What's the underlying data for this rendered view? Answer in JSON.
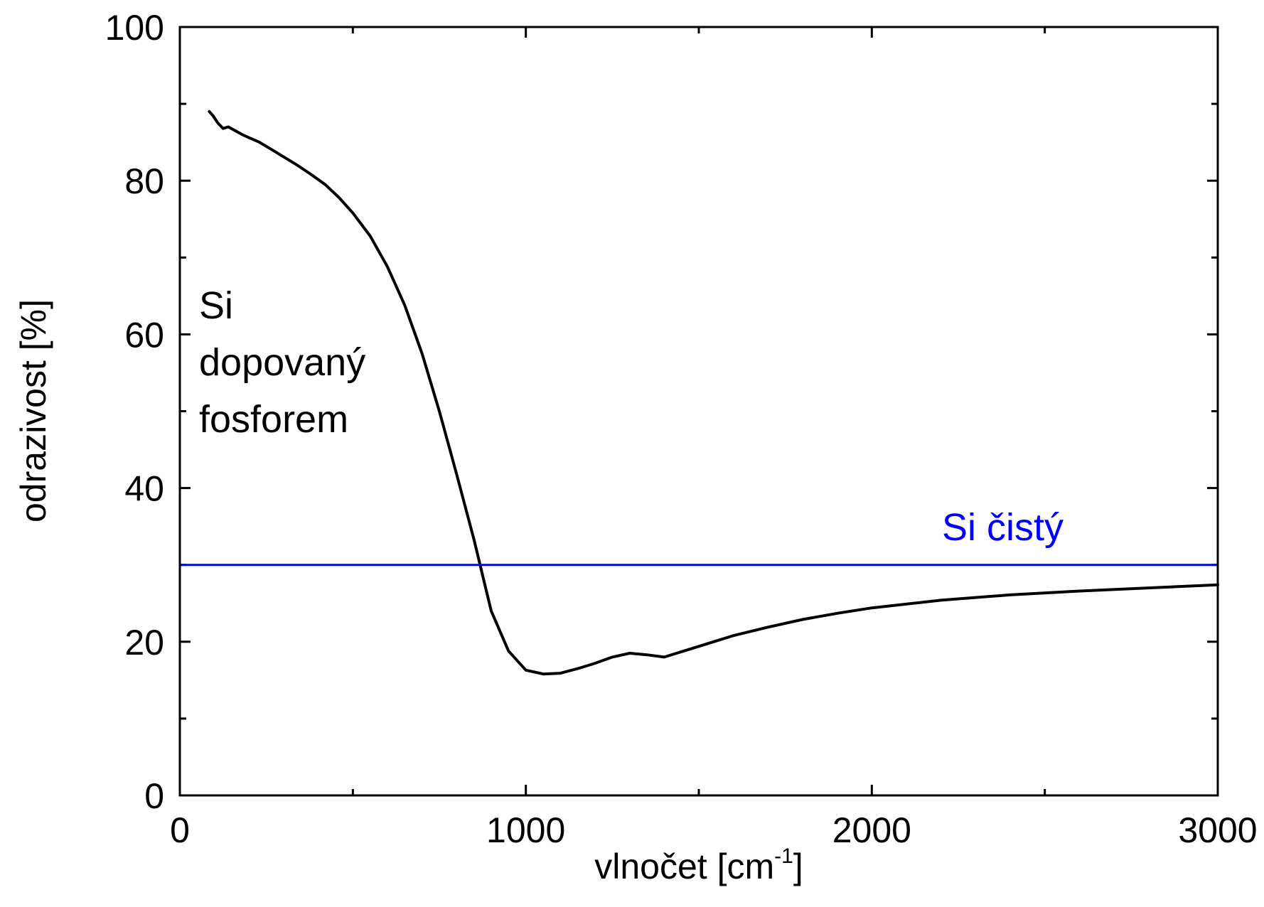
{
  "chart_data": {
    "type": "line",
    "title": "",
    "xlabel": "vlnočet [cm",
    "xlabel_sup": "-1",
    "xlabel_close": "]",
    "ylabel": "odrazivost [%]",
    "xlim": [
      0,
      3000
    ],
    "ylim": [
      0,
      100
    ],
    "x_ticks": [
      0,
      1000,
      2000,
      3000
    ],
    "x_tick_labels": [
      "0",
      "1000",
      "2000",
      "3000"
    ],
    "x_minor_ticks": [
      500,
      1500,
      2500
    ],
    "y_ticks": [
      0,
      20,
      40,
      60,
      80,
      100
    ],
    "y_tick_labels": [
      "0",
      "20",
      "40",
      "60",
      "80",
      "100"
    ],
    "y_minor_ticks": [
      10,
      30,
      50,
      70,
      90
    ],
    "grid": false,
    "series": [
      {
        "color": "#000000",
        "x": [
          85,
          95,
          110,
          125,
          140,
          160,
          180,
          200,
          230,
          260,
          300,
          340,
          380,
          420,
          460,
          500,
          550,
          600,
          650,
          700,
          750,
          800,
          850,
          900,
          950,
          1000,
          1050,
          1100,
          1150,
          1200,
          1250,
          1300,
          1350,
          1400,
          1500,
          1600,
          1700,
          1800,
          1900,
          2000,
          2200,
          2400,
          2600,
          2800,
          3000
        ],
        "y": [
          89.0,
          88.5,
          87.5,
          86.8,
          87.0,
          86.5,
          86.0,
          85.6,
          85.0,
          84.2,
          83.1,
          82.0,
          80.8,
          79.5,
          77.8,
          75.8,
          72.8,
          68.8,
          63.8,
          57.5,
          50.0,
          41.8,
          33.3,
          24.0,
          18.8,
          16.3,
          15.8,
          15.9,
          16.5,
          17.2,
          18.0,
          18.5,
          18.3,
          18.0,
          19.4,
          20.8,
          21.9,
          22.9,
          23.7,
          24.4,
          25.4,
          26.1,
          26.6,
          27.0,
          27.4
        ],
        "label": "Si dopovaný fosforem",
        "label_lines": [
          "Si",
          "dopovaný",
          "fosforem"
        ]
      },
      {
        "color": "#0000ff",
        "x": [
          0,
          3000
        ],
        "y": [
          30,
          30
        ],
        "label": "Si čistý"
      }
    ]
  }
}
